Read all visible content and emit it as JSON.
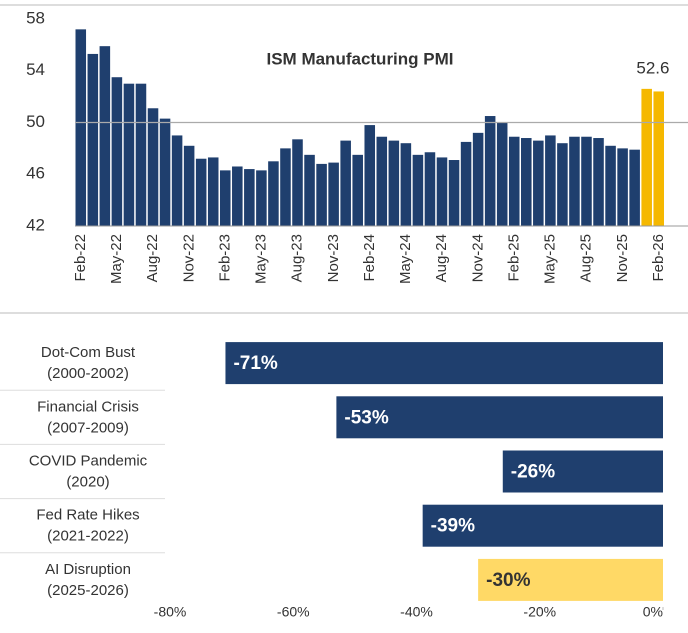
{
  "chart_data": [
    {
      "type": "bar",
      "title": "ISM Manufacturing PMI",
      "categories": [
        "Feb-22",
        null,
        null,
        "May-22",
        null,
        null,
        "Aug-22",
        null,
        null,
        "Nov-22",
        null,
        null,
        "Feb-23",
        null,
        null,
        "May-23",
        null,
        null,
        "Aug-23",
        null,
        null,
        "Nov-23",
        null,
        null,
        "Feb-24",
        null,
        null,
        "May-24",
        null,
        null,
        "Aug-24",
        null,
        null,
        "Nov-24",
        null,
        null,
        "Feb-25",
        null,
        null,
        "May-25",
        null,
        null,
        "Aug-25",
        null,
        null,
        "Nov-25",
        null,
        null,
        "Feb-26"
      ],
      "values": [
        57.2,
        55.3,
        55.9,
        53.5,
        53.0,
        53.0,
        51.1,
        50.3,
        49.0,
        48.2,
        47.2,
        47.3,
        46.3,
        46.6,
        46.4,
        46.3,
        47.0,
        48.0,
        48.7,
        47.5,
        46.8,
        46.9,
        48.6,
        47.5,
        49.8,
        48.9,
        48.6,
        48.4,
        47.5,
        47.7,
        47.3,
        47.1,
        48.5,
        49.2,
        50.5,
        50.0,
        48.9,
        48.8,
        48.6,
        49.0,
        48.4,
        48.9,
        48.9,
        48.8,
        48.2,
        48.0,
        47.9,
        52.6,
        52.4
      ],
      "colors": [
        "#1f3f6e",
        "#1f3f6e",
        "#1f3f6e",
        "#1f3f6e",
        "#1f3f6e",
        "#1f3f6e",
        "#1f3f6e",
        "#1f3f6e",
        "#1f3f6e",
        "#1f3f6e",
        "#1f3f6e",
        "#1f3f6e",
        "#1f3f6e",
        "#1f3f6e",
        "#1f3f6e",
        "#1f3f6e",
        "#1f3f6e",
        "#1f3f6e",
        "#1f3f6e",
        "#1f3f6e",
        "#1f3f6e",
        "#1f3f6e",
        "#1f3f6e",
        "#1f3f6e",
        "#1f3f6e",
        "#1f3f6e",
        "#1f3f6e",
        "#1f3f6e",
        "#1f3f6e",
        "#1f3f6e",
        "#1f3f6e",
        "#1f3f6e",
        "#1f3f6e",
        "#1f3f6e",
        "#1f3f6e",
        "#1f3f6e",
        "#1f3f6e",
        "#1f3f6e",
        "#1f3f6e",
        "#1f3f6e",
        "#1f3f6e",
        "#1f3f6e",
        "#1f3f6e",
        "#1f3f6e",
        "#1f3f6e",
        "#1f3f6e",
        "#1f3f6e",
        "#f5b800",
        "#f5b800"
      ],
      "ylim": [
        42,
        58
      ],
      "yticks": [
        42,
        46,
        50,
        54,
        58
      ],
      "reference_line": 50,
      "annotation": {
        "text": "52.6",
        "index": 47
      }
    },
    {
      "type": "hbar",
      "categories": [
        [
          "Dot-Com Bust",
          "(2000-2002)"
        ],
        [
          "Financial Crisis",
          "(2007-2009)"
        ],
        [
          "COVID Pandemic",
          "(2020)"
        ],
        [
          "Fed Rate Hikes",
          "(2021-2022)"
        ],
        [
          "AI Disruption",
          "(2025-2026)"
        ]
      ],
      "values": [
        -71,
        -53,
        -26,
        -39,
        -30
      ],
      "value_labels": [
        "-71%",
        "-53%",
        "-26%",
        "-39%",
        "-30%"
      ],
      "colors": [
        "#1f3f6e",
        "#1f3f6e",
        "#1f3f6e",
        "#1f3f6e",
        "#ffd966"
      ],
      "xlim": [
        -80,
        0
      ],
      "xticks": [
        {
          "value": -80,
          "label": "-80%"
        },
        {
          "value": -60,
          "label": "-60%"
        },
        {
          "value": -40,
          "label": "-40%"
        },
        {
          "value": -20,
          "label": "-20%"
        },
        {
          "value": 0,
          "label": "0%"
        }
      ]
    }
  ]
}
